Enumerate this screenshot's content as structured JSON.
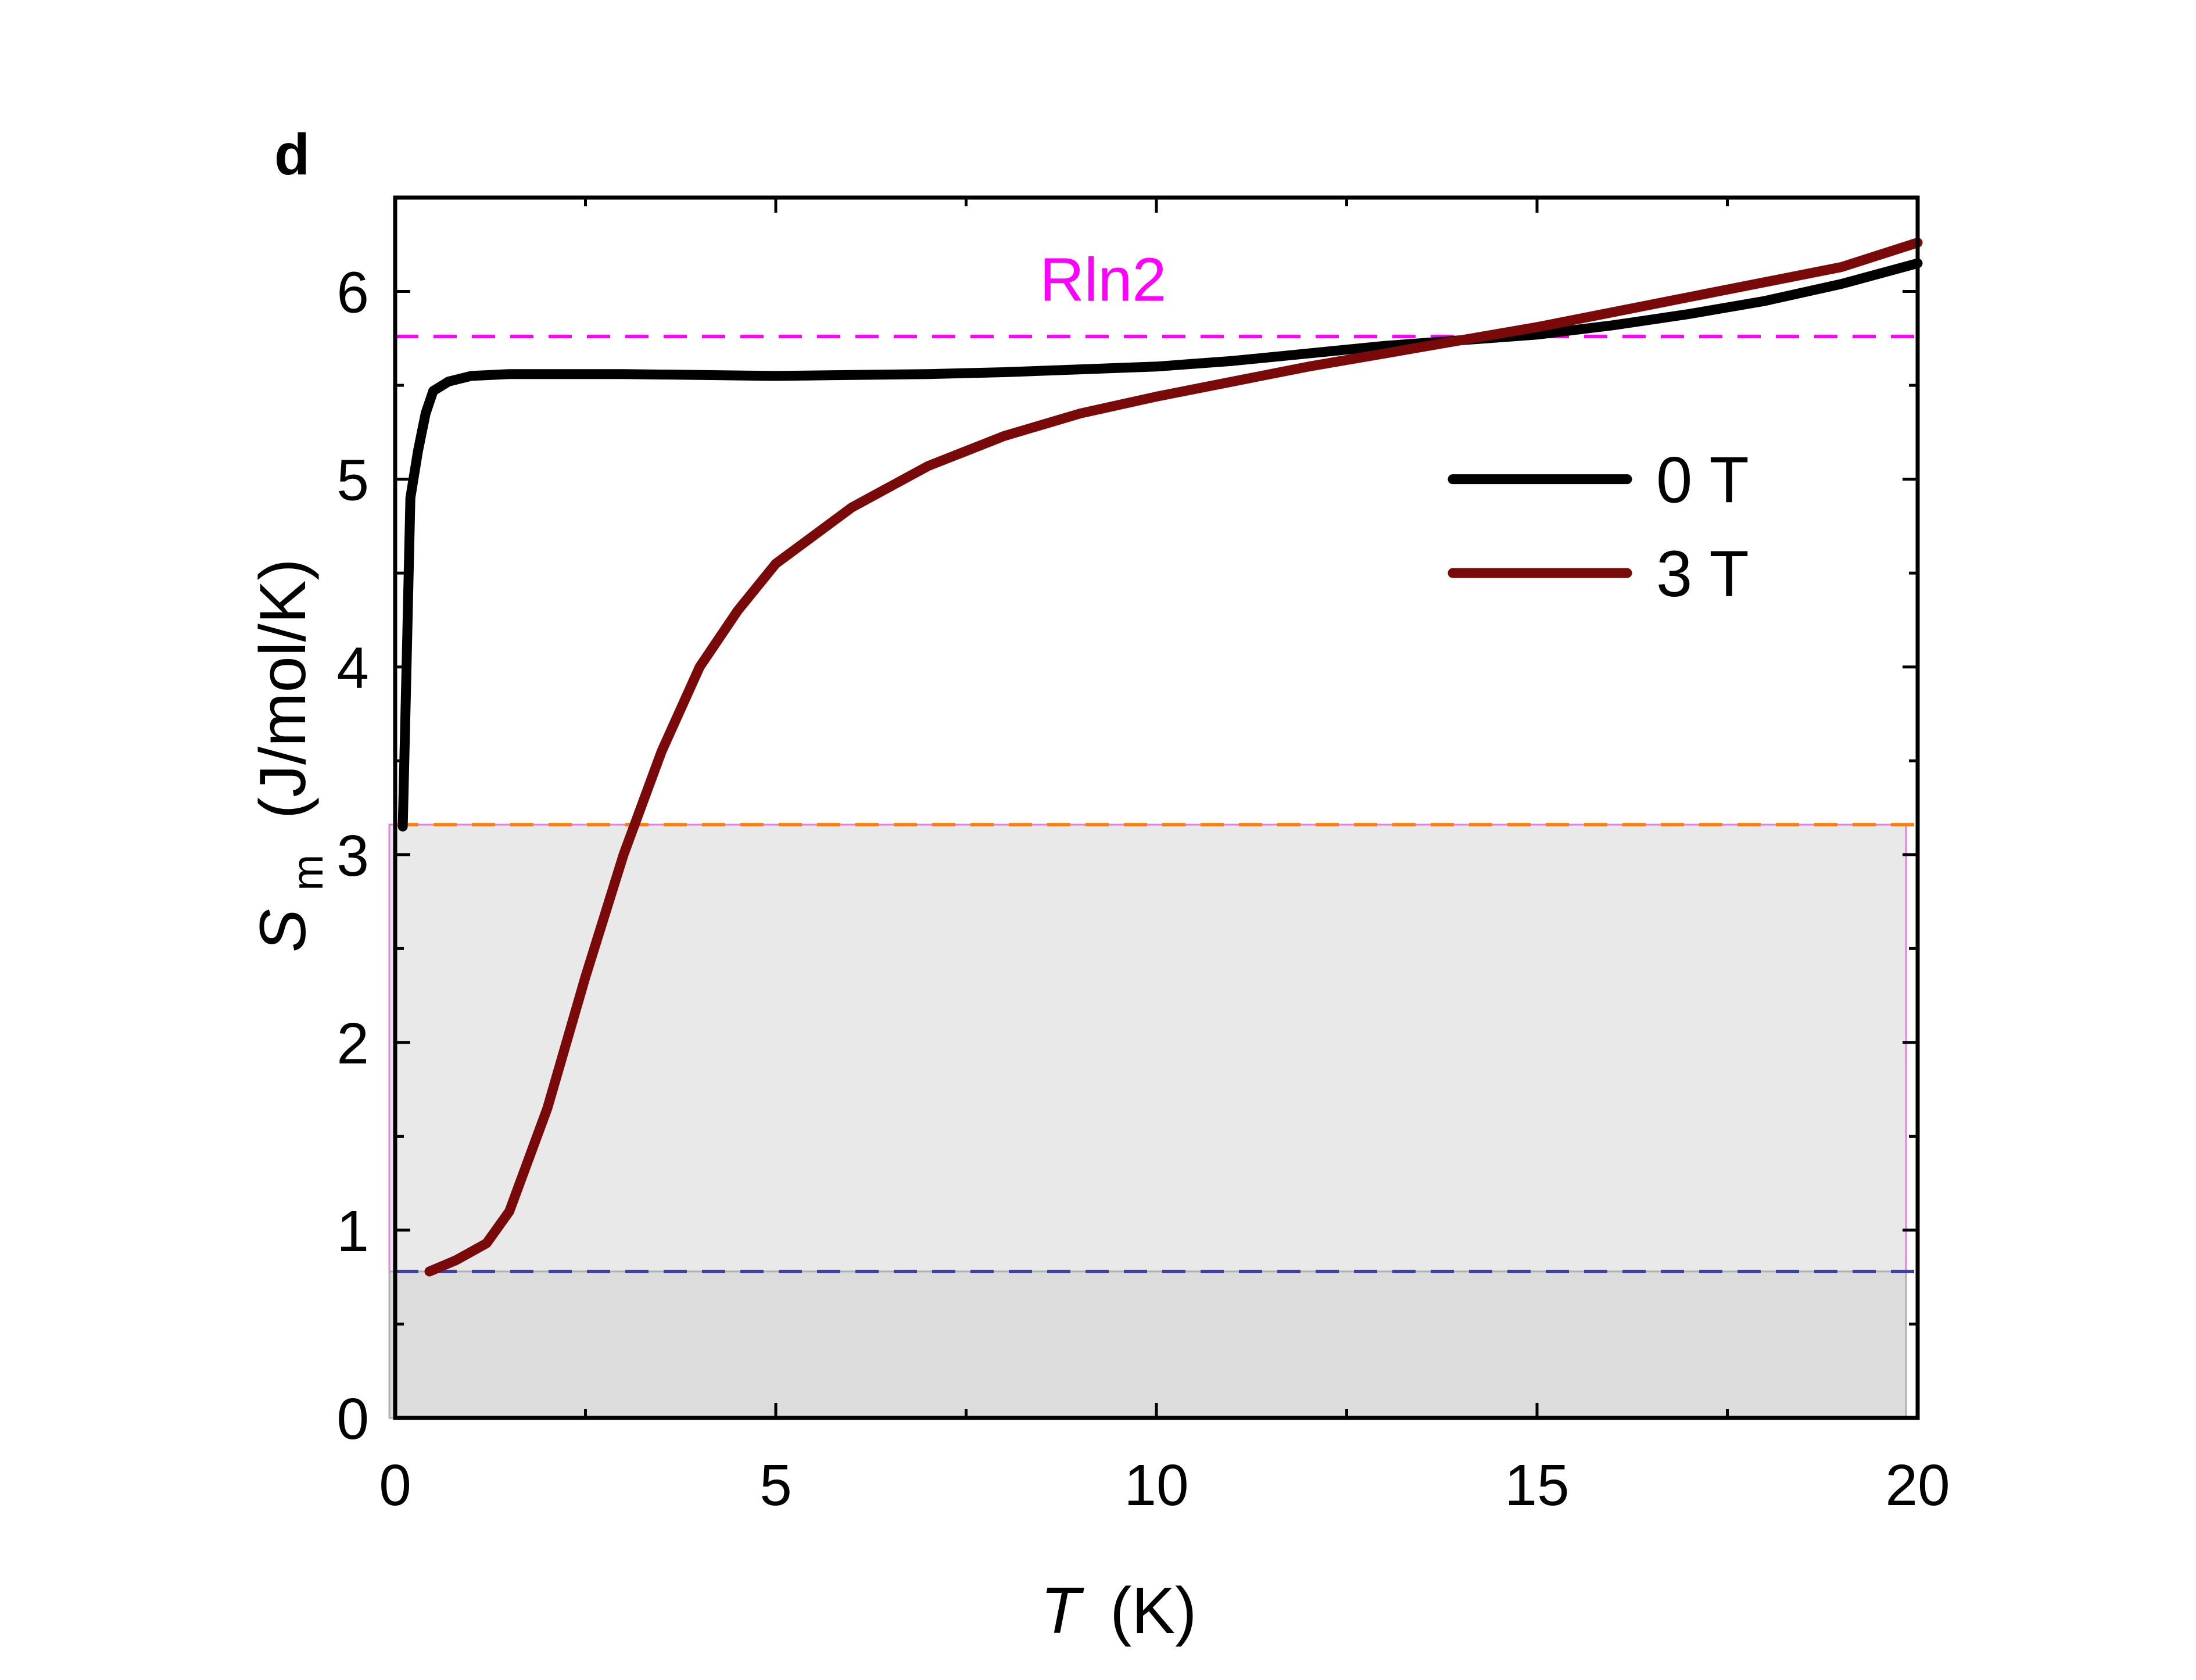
{
  "chart_data": {
    "type": "line",
    "panel_label": "d",
    "xlabel_italic": "T",
    "xlabel_unit": "(K)",
    "ylabel_symbol": "S",
    "ylabel_subscript": "m",
    "ylabel_unit": "(J/mol/K)",
    "xlim": [
      0,
      20
    ],
    "ylim": [
      0,
      6.5
    ],
    "xticks": [
      0,
      5,
      10,
      15,
      20
    ],
    "xtick_labels": [
      "0",
      "5",
      "10",
      "15",
      "20"
    ],
    "yticks": [
      0,
      1,
      2,
      3,
      4,
      5,
      6
    ],
    "ytick_labels": [
      "0",
      "1",
      "2",
      "3",
      "4",
      "5",
      "6"
    ],
    "grid": false,
    "legend_position": "right, upper-middle",
    "series": [
      {
        "name": "0 T",
        "color": "#000000",
        "x": [
          0.1,
          0.15,
          0.2,
          0.3,
          0.4,
          0.5,
          0.7,
          1.0,
          1.5,
          2,
          3,
          4,
          5,
          6,
          7,
          8,
          9,
          10,
          11,
          12,
          13,
          14,
          15,
          16,
          17,
          18,
          19,
          20
        ],
        "y": [
          3.15,
          4.0,
          4.9,
          5.15,
          5.35,
          5.47,
          5.52,
          5.55,
          5.56,
          5.56,
          5.56,
          5.555,
          5.55,
          5.555,
          5.56,
          5.57,
          5.585,
          5.6,
          5.63,
          5.67,
          5.71,
          5.74,
          5.77,
          5.82,
          5.88,
          5.95,
          6.04,
          6.15
        ]
      },
      {
        "name": "3 T",
        "color": "#7a0a0a",
        "x": [
          0.45,
          0.8,
          1.2,
          1.5,
          2.0,
          2.5,
          3.0,
          3.5,
          4.0,
          4.5,
          5.0,
          6.0,
          7.0,
          8.0,
          9.0,
          10.0,
          11.0,
          12.0,
          13.0,
          14.0,
          15.0,
          16.0,
          17.0,
          18.0,
          19.0,
          20.0
        ],
        "y": [
          0.78,
          0.84,
          0.93,
          1.1,
          1.65,
          2.35,
          3.0,
          3.55,
          4.0,
          4.3,
          4.55,
          4.85,
          5.07,
          5.23,
          5.35,
          5.44,
          5.52,
          5.6,
          5.67,
          5.74,
          5.81,
          5.89,
          5.97,
          6.05,
          6.13,
          6.26
        ]
      }
    ],
    "reference_lines": [
      {
        "label": "Rln2",
        "y": 5.76,
        "color": "#ff00ff",
        "style": "dashed"
      },
      {
        "label": "",
        "y": 3.16,
        "color": "#ff7f0e",
        "style": "dashed"
      },
      {
        "label": "",
        "y": 0.78,
        "color": "#4040a0",
        "style": "dashed"
      }
    ],
    "shaded_bands": [
      {
        "y_from": 0.78,
        "y_to": 3.16,
        "color": "#e9e9ea",
        "edge": "#e080e0"
      },
      {
        "y_from": 0,
        "y_to": 0.78,
        "color": "#dcdcdc",
        "edge": "#b0b0b0"
      }
    ],
    "annotations": [
      {
        "text": "Rln2",
        "x": 9.3,
        "y": 5.95,
        "color": "#ff00ff"
      }
    ]
  }
}
